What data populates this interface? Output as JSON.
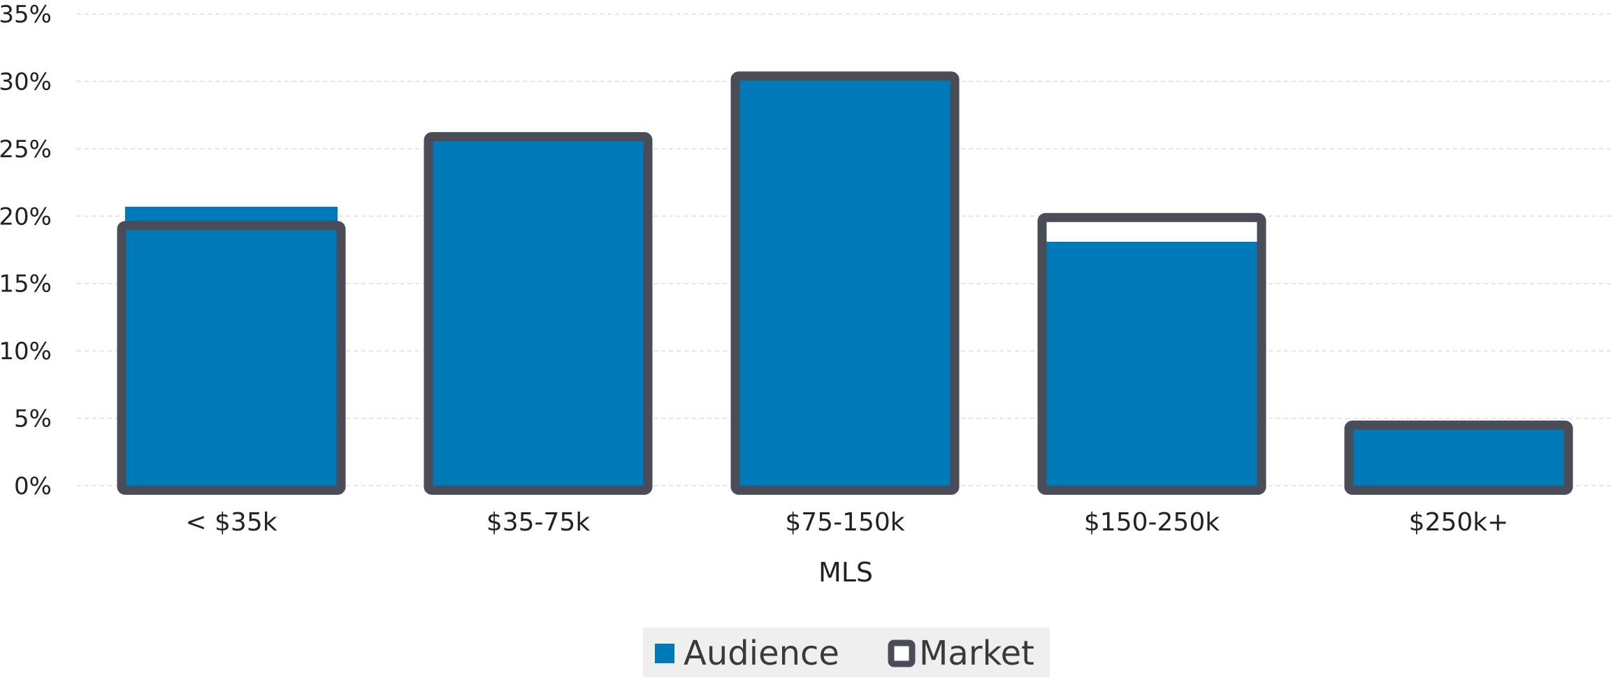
{
  "chart_data": {
    "type": "bar",
    "title": "",
    "xlabel": "MLS",
    "ylabel": "",
    "categories": [
      "< $35k",
      "$35-75k",
      "$75-150k",
      "$150-250k",
      "$250k+"
    ],
    "series": [
      {
        "name": "Audience",
        "values": [
          20.7,
          25.7,
          30.2,
          18.1,
          4.3
        ],
        "color": "#0079b8"
      },
      {
        "name": "Market",
        "values": [
          19.3,
          25.9,
          30.4,
          19.9,
          4.5
        ],
        "color": "#4a4c57"
      }
    ],
    "ylim": [
      0,
      35
    ],
    "yticks": [
      0,
      5,
      10,
      15,
      20,
      25,
      30,
      35
    ],
    "ytick_labels": [
      "0%",
      "5%",
      "10%",
      "15%",
      "20%",
      "25%",
      "30%",
      "35%"
    ],
    "grid": true,
    "legend_position": "bottom-center",
    "colors": {
      "audience": "#0079b8",
      "market_outline": "#4a4c57",
      "grid": "#dddddd",
      "legend_background": "#efefef"
    }
  }
}
